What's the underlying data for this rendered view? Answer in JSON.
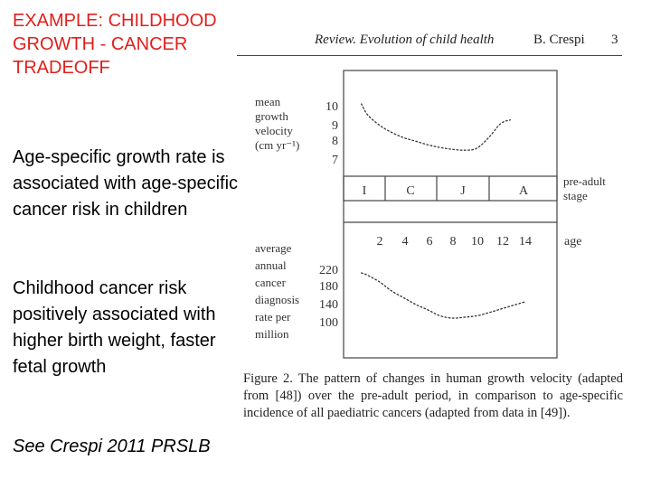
{
  "slide": {
    "title": "EXAMPLE: CHILDHOOD GROWTH - CANCER TRADEOFF",
    "point1": "Age-specific growth rate is associated with age-specific cancer risk in children",
    "point2": "Childhood cancer risk positively associated with higher birth weight, faster fetal growth",
    "reference": "See Crespi 2011 PRSLB",
    "title_color": "#e0201c"
  },
  "paper": {
    "header_italic": "Review. Evolution of child health",
    "header_author": "B. Crespi",
    "header_page": "3",
    "caption": "Figure 2. The pattern of changes in human growth velocity (adapted from [48]) over the pre-adult period, in comparison to age-specific incidence of all paediatric cancers (adapted from data in [49]).",
    "figure": {
      "top_label": [
        "mean",
        "growth",
        "velocity",
        "(cm yr⁻¹)"
      ],
      "top_ticks": [
        "10",
        "9",
        "8",
        "7"
      ],
      "stages": [
        "I",
        "C",
        "J",
        "A"
      ],
      "stage_label": [
        "pre-adult",
        "stage"
      ],
      "ages": [
        "2",
        "4",
        "6",
        "8",
        "10",
        "12",
        "14"
      ],
      "age_label": "age",
      "bottom_label": [
        "average",
        "annual",
        "cancer",
        "diagnosis",
        "rate per",
        "million"
      ],
      "bottom_ticks": [
        "220",
        "180",
        "140",
        "100"
      ]
    }
  },
  "chart_data": [
    {
      "type": "line",
      "ylabel": "mean growth velocity (cm yr⁻¹)",
      "ylim": [
        7,
        10
      ],
      "x": [
        0.5,
        1,
        2,
        3,
        4,
        5,
        6,
        7,
        8,
        9,
        10,
        11,
        12,
        12.8
      ],
      "values": [
        10.1,
        9.5,
        8.9,
        8.5,
        8.2,
        8.0,
        7.8,
        7.65,
        7.55,
        7.5,
        7.6,
        8.2,
        9.0,
        9.2
      ]
    },
    {
      "type": "line",
      "xlabel": "age",
      "ylabel": "average annual cancer diagnosis rate per million",
      "ylim": [
        100,
        220
      ],
      "x": [
        0.5,
        1,
        2,
        3,
        4,
        5,
        6,
        7,
        8,
        9,
        10,
        11,
        12,
        13,
        14
      ],
      "values": [
        210,
        205,
        190,
        170,
        155,
        140,
        128,
        115,
        110,
        112,
        115,
        122,
        130,
        138,
        146
      ]
    }
  ]
}
